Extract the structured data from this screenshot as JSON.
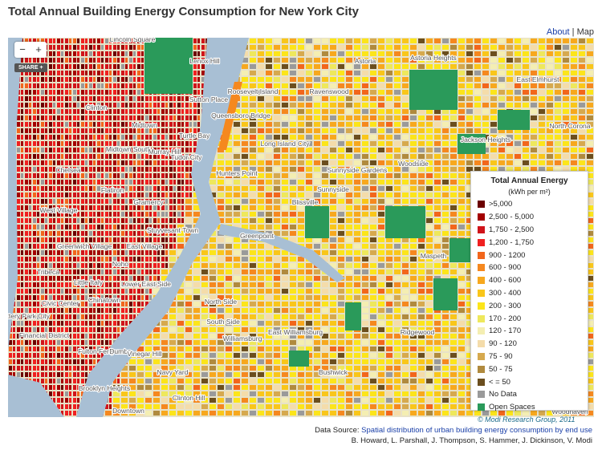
{
  "header": {
    "title": "Total Annual Building Energy Consumption for New York City",
    "links": [
      "About",
      "Map"
    ],
    "separator": "|"
  },
  "map": {
    "controls": {
      "zoom_out": "−",
      "zoom_in": "+",
      "share": "SHARE +"
    },
    "labels": [
      "Lincoln Square",
      "Clinton",
      "Midtown",
      "Midtown South",
      "Murray Hill",
      "Turtle Bay",
      "Tudor City",
      "Sutton Place",
      "Lenox Hill",
      "Roosevelt Island",
      "Chelsea",
      "Flatiron",
      "Gramercy",
      "Stuyvesant Town",
      "West Village",
      "Greenwich Village",
      "East Village",
      "Noho",
      "Tribeca",
      "Little Italy",
      "Lower East Side",
      "Chinatown",
      "Civic Center",
      "Battery Park City",
      "Financial District",
      "Fulton Ferry",
      "Dumbo",
      "Vinegar Hill",
      "Navy Yard",
      "Brooklyn Heights",
      "Clinton Hill",
      "Downtown",
      "Astoria",
      "Astoria Heights",
      "East Elmhurst",
      "Ravenswood",
      "Jackson Heights",
      "North Corona",
      "Long Island City",
      "Hunters Point",
      "Sunnyside Gardens",
      "Woodside",
      "Sunnyside",
      "Blissville",
      "Greenpoint",
      "Maspeth",
      "North Side",
      "South Side",
      "East Williamsburg",
      "Williamsburg",
      "Ridgewood",
      "Bushwick",
      "Queensboro Bridge",
      "Woodhaven"
    ]
  },
  "legend": {
    "title": "Total Annual Energy",
    "subtitle": "(kWh per m²)",
    "items": [
      {
        "label": ">5,000",
        "color": "#6b0000"
      },
      {
        "label": "2,500 - 5,000",
        "color": "#a30000"
      },
      {
        "label": "1,750 - 2,500",
        "color": "#d0141a"
      },
      {
        "label": "1,200 - 1,750",
        "color": "#f02020"
      },
      {
        "label": "900 - 1200",
        "color": "#f2661c"
      },
      {
        "label": "600 - 900",
        "color": "#f5881f"
      },
      {
        "label": "400 - 600",
        "color": "#f7a81e"
      },
      {
        "label": "300 - 400",
        "color": "#f9c61a"
      },
      {
        "label": "200 - 300",
        "color": "#fce51a"
      },
      {
        "label": "170 - 200",
        "color": "#eee85c"
      },
      {
        "label": "120 - 170",
        "color": "#f4eeb2"
      },
      {
        "label": "90 - 120",
        "color": "#f4dcaa"
      },
      {
        "label": "75 - 90",
        "color": "#d6a94e"
      },
      {
        "label": "50 - 75",
        "color": "#b08a3e"
      },
      {
        "label": "< = 50",
        "color": "#6b4e1e"
      },
      {
        "label": "No Data",
        "color": "#9a9a9a"
      },
      {
        "label": "Open Spaces",
        "color": "#2a9a5a"
      }
    ],
    "credit": "© Modi Research Group, 2011"
  },
  "footer": {
    "source_prefix": "Data Source:",
    "source_link": "Spatial distribution of urban building energy consumption by end use",
    "authors": "B. Howard, L. Parshall, J. Thompson, S. Hammer, J. Dickinson, V. Modi"
  }
}
